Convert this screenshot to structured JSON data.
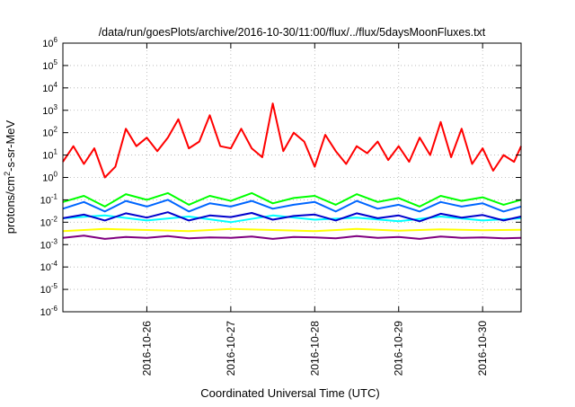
{
  "chart_data": {
    "type": "line",
    "title": "/data/run/goesPlots/archive/2016-10-30/11:00/flux/../flux/5daysMoonFluxes.txt",
    "xlabel": "Coordinated Universal Time (UTC)",
    "ylabel": {
      "prefix": "protons/cm",
      "sup": "2",
      "suffix": "-s-sr-MeV"
    },
    "x_scale": "time",
    "x_range": [
      "2016-10-25T00:00",
      "2016-10-30T11:00"
    ],
    "x_ticks": [
      "2016-10-26",
      "2016-10-27",
      "2016-10-28",
      "2016-10-29",
      "2016-10-30"
    ],
    "y_scale": "log",
    "ylim": [
      1e-06,
      1000000.0
    ],
    "y_ticks": [
      {
        "base": "10",
        "exp": "-6"
      },
      {
        "base": "10",
        "exp": "-5"
      },
      {
        "base": "10",
        "exp": "-4"
      },
      {
        "base": "10",
        "exp": "-3"
      },
      {
        "base": "10",
        "exp": "-2"
      },
      {
        "base": "10",
        "exp": "-1"
      },
      {
        "base": "10",
        "exp": "0"
      },
      {
        "base": "10",
        "exp": "1"
      },
      {
        "base": "10",
        "exp": "2"
      },
      {
        "base": "10",
        "exp": "3"
      },
      {
        "base": "10",
        "exp": "4"
      },
      {
        "base": "10",
        "exp": "5"
      },
      {
        "base": "10",
        "exp": "6"
      }
    ],
    "grid": true,
    "series": [
      {
        "color": "#ff0000",
        "x": [
          "2016-10-25T00:00",
          "2016-10-25T03:00",
          "2016-10-25T06:00",
          "2016-10-25T09:00",
          "2016-10-25T12:00",
          "2016-10-25T15:00",
          "2016-10-25T18:00",
          "2016-10-25T21:00",
          "2016-10-26T00:00",
          "2016-10-26T03:00",
          "2016-10-26T06:00",
          "2016-10-26T09:00",
          "2016-10-26T12:00",
          "2016-10-26T15:00",
          "2016-10-26T18:00",
          "2016-10-26T21:00",
          "2016-10-27T00:00",
          "2016-10-27T03:00",
          "2016-10-27T06:00",
          "2016-10-27T09:00",
          "2016-10-27T12:00",
          "2016-10-27T15:00",
          "2016-10-27T18:00",
          "2016-10-27T21:00",
          "2016-10-28T00:00",
          "2016-10-28T03:00",
          "2016-10-28T06:00",
          "2016-10-28T09:00",
          "2016-10-28T12:00",
          "2016-10-28T15:00",
          "2016-10-28T18:00",
          "2016-10-28T21:00",
          "2016-10-29T00:00",
          "2016-10-29T03:00",
          "2016-10-29T06:00",
          "2016-10-29T09:00",
          "2016-10-29T12:00",
          "2016-10-29T15:00",
          "2016-10-29T18:00",
          "2016-10-29T21:00",
          "2016-10-30T00:00",
          "2016-10-30T03:00",
          "2016-10-30T06:00",
          "2016-10-30T09:00",
          "2016-10-30T11:00"
        ],
        "y": [
          5,
          25,
          4,
          20,
          1,
          3,
          150,
          25,
          60,
          15,
          60,
          400,
          20,
          40,
          600,
          25,
          20,
          150,
          20,
          8,
          2000,
          15,
          100,
          40,
          3,
          80,
          15,
          4,
          25,
          12,
          40,
          6,
          25,
          5,
          60,
          10,
          300,
          8,
          150,
          4,
          20,
          2,
          10,
          5,
          25
        ]
      },
      {
        "color": "#00ff00",
        "x": [
          "2016-10-25T00:00",
          "2016-10-25T06:00",
          "2016-10-25T12:00",
          "2016-10-25T18:00",
          "2016-10-26T00:00",
          "2016-10-26T06:00",
          "2016-10-26T12:00",
          "2016-10-26T18:00",
          "2016-10-27T00:00",
          "2016-10-27T06:00",
          "2016-10-27T12:00",
          "2016-10-27T18:00",
          "2016-10-28T00:00",
          "2016-10-28T06:00",
          "2016-10-28T12:00",
          "2016-10-28T18:00",
          "2016-10-29T00:00",
          "2016-10-29T06:00",
          "2016-10-29T12:00",
          "2016-10-29T18:00",
          "2016-10-30T00:00",
          "2016-10-30T06:00",
          "2016-10-30T11:00"
        ],
        "y": [
          0.08,
          0.15,
          0.05,
          0.18,
          0.1,
          0.2,
          0.06,
          0.15,
          0.09,
          0.2,
          0.07,
          0.12,
          0.15,
          0.06,
          0.18,
          0.08,
          0.12,
          0.05,
          0.15,
          0.09,
          0.13,
          0.06,
          0.1
        ]
      },
      {
        "color": "#00ffff",
        "x": [
          "2016-10-25T00:00",
          "2016-10-25T12:00",
          "2016-10-26T00:00",
          "2016-10-26T12:00",
          "2016-10-27T00:00",
          "2016-10-27T12:00",
          "2016-10-28T00:00",
          "2016-10-28T12:00",
          "2016-10-29T00:00",
          "2016-10-29T12:00",
          "2016-10-30T00:00",
          "2016-10-30T11:00"
        ],
        "y": [
          0.015,
          0.02,
          0.012,
          0.018,
          0.01,
          0.02,
          0.013,
          0.016,
          0.011,
          0.018,
          0.012,
          0.015
        ]
      },
      {
        "color": "#0066ff",
        "x": [
          "2016-10-25T00:00",
          "2016-10-25T06:00",
          "2016-10-25T12:00",
          "2016-10-25T18:00",
          "2016-10-26T00:00",
          "2016-10-26T06:00",
          "2016-10-26T12:00",
          "2016-10-26T18:00",
          "2016-10-27T00:00",
          "2016-10-27T06:00",
          "2016-10-27T12:00",
          "2016-10-27T18:00",
          "2016-10-28T00:00",
          "2016-10-28T06:00",
          "2016-10-28T12:00",
          "2016-10-28T18:00",
          "2016-10-29T00:00",
          "2016-10-29T06:00",
          "2016-10-29T12:00",
          "2016-10-29T18:00",
          "2016-10-30T00:00",
          "2016-10-30T06:00",
          "2016-10-30T11:00"
        ],
        "y": [
          0.04,
          0.08,
          0.03,
          0.09,
          0.05,
          0.1,
          0.03,
          0.07,
          0.05,
          0.09,
          0.04,
          0.06,
          0.08,
          0.03,
          0.09,
          0.04,
          0.06,
          0.03,
          0.08,
          0.05,
          0.07,
          0.03,
          0.05
        ]
      },
      {
        "color": "#0000cc",
        "x": [
          "2016-10-25T00:00",
          "2016-10-25T06:00",
          "2016-10-25T12:00",
          "2016-10-25T18:00",
          "2016-10-26T00:00",
          "2016-10-26T06:00",
          "2016-10-26T12:00",
          "2016-10-26T18:00",
          "2016-10-27T00:00",
          "2016-10-27T06:00",
          "2016-10-27T12:00",
          "2016-10-27T18:00",
          "2016-10-28T00:00",
          "2016-10-28T06:00",
          "2016-10-28T12:00",
          "2016-10-28T18:00",
          "2016-10-29T00:00",
          "2016-10-29T06:00",
          "2016-10-29T12:00",
          "2016-10-29T18:00",
          "2016-10-30T00:00",
          "2016-10-30T06:00",
          "2016-10-30T11:00"
        ],
        "y": [
          0.015,
          0.022,
          0.012,
          0.025,
          0.016,
          0.028,
          0.012,
          0.02,
          0.017,
          0.026,
          0.013,
          0.019,
          0.022,
          0.012,
          0.025,
          0.015,
          0.02,
          0.011,
          0.024,
          0.016,
          0.021,
          0.012,
          0.018
        ]
      },
      {
        "color": "#ffff00",
        "x": [
          "2016-10-25T00:00",
          "2016-10-25T12:00",
          "2016-10-26T00:00",
          "2016-10-26T12:00",
          "2016-10-27T00:00",
          "2016-10-27T12:00",
          "2016-10-28T00:00",
          "2016-10-28T12:00",
          "2016-10-29T00:00",
          "2016-10-29T12:00",
          "2016-10-30T00:00",
          "2016-10-30T11:00"
        ],
        "y": [
          0.004,
          0.005,
          0.0045,
          0.004,
          0.005,
          0.0045,
          0.004,
          0.005,
          0.0042,
          0.0048,
          0.0044,
          0.0046
        ]
      },
      {
        "color": "#800080",
        "x": [
          "2016-10-25T00:00",
          "2016-10-25T06:00",
          "2016-10-25T12:00",
          "2016-10-25T18:00",
          "2016-10-26T00:00",
          "2016-10-26T06:00",
          "2016-10-26T12:00",
          "2016-10-26T18:00",
          "2016-10-27T00:00",
          "2016-10-27T06:00",
          "2016-10-27T12:00",
          "2016-10-27T18:00",
          "2016-10-28T00:00",
          "2016-10-28T06:00",
          "2016-10-28T12:00",
          "2016-10-28T18:00",
          "2016-10-29T00:00",
          "2016-10-29T06:00",
          "2016-10-29T12:00",
          "2016-10-29T18:00",
          "2016-10-30T00:00",
          "2016-10-30T06:00",
          "2016-10-30T11:00"
        ],
        "y": [
          0.002,
          0.0025,
          0.0018,
          0.0022,
          0.002,
          0.0024,
          0.0019,
          0.0021,
          0.002,
          0.0023,
          0.0018,
          0.0022,
          0.0021,
          0.0019,
          0.0024,
          0.002,
          0.0022,
          0.0018,
          0.0023,
          0.002,
          0.0021,
          0.0019,
          0.002
        ]
      }
    ]
  }
}
